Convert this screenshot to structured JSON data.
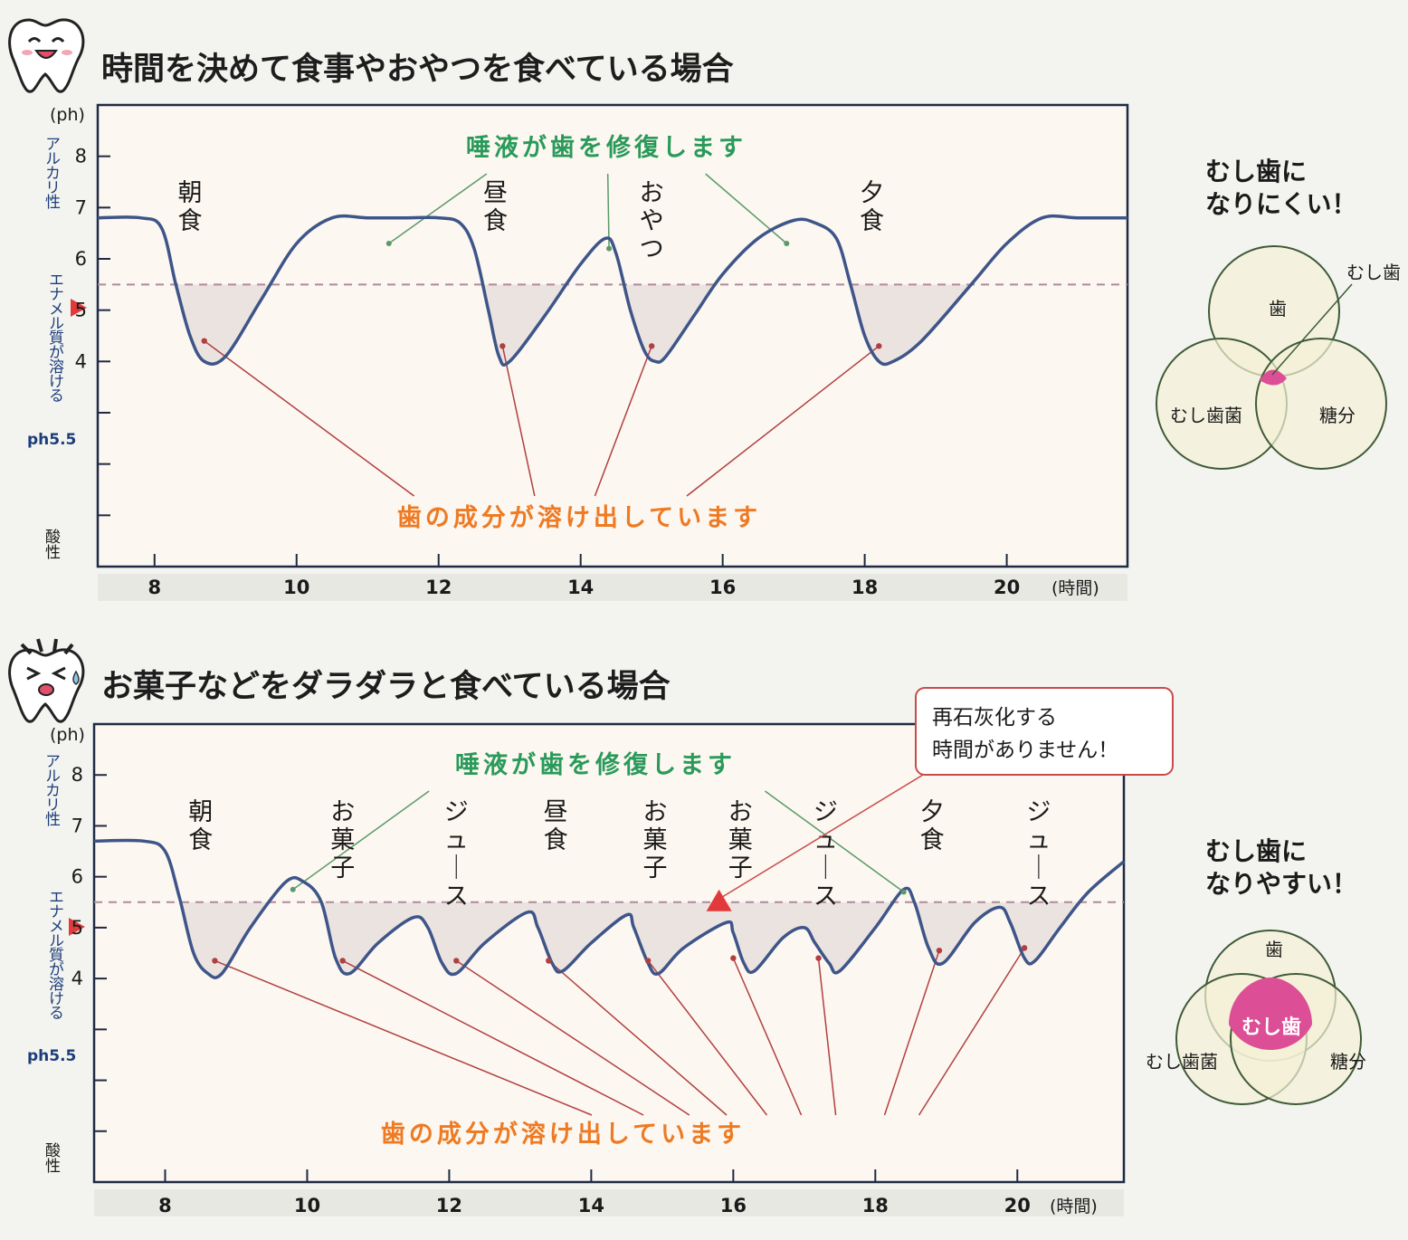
{
  "panels": [
    {
      "title": "時間を決めて食事やおやつを食べている場合",
      "unit": "(ph)",
      "side_alkaline": "アルカリ性",
      "side_threshold": "エナメル質が溶ける",
      "side_ph": "ph5.5",
      "side_acid": "酸性",
      "x_unit": "(時間)",
      "saliva_label": "唾液が歯を修復します",
      "dissolve_label": "歯の成分が溶け出しています",
      "venn_heading": [
        "むし歯に",
        "なりにくい！"
      ],
      "venn_labels": [
        "歯",
        "むし歯菌",
        "糖分",
        "むし歯"
      ],
      "chart_data": {
        "type": "line",
        "xlim": [
          7.2,
          21.7
        ],
        "ylim": [
          0,
          9
        ],
        "x_ticks": [
          8,
          10,
          12,
          14,
          16,
          18,
          20
        ],
        "y_ticks": [
          4,
          5,
          6,
          7,
          8
        ],
        "threshold": 5.5,
        "events": [
          {
            "x": 8.5,
            "label": "朝食"
          },
          {
            "x": 12.8,
            "label": "昼食"
          },
          {
            "x": 15.0,
            "label": "おやつ"
          },
          {
            "x": 18.1,
            "label": "夕食"
          }
        ],
        "series": [
          {
            "x": [
              7.2,
              7.8,
              8.1,
              8.3,
              8.5,
              8.7,
              9.0,
              9.5,
              10.0,
              10.5,
              11.0,
              11.5,
              12.0,
              12.3,
              12.5,
              12.7,
              12.85,
              13.0,
              13.5,
              14.0,
              14.35,
              14.5,
              14.7,
              14.9,
              15.05,
              15.2,
              15.6,
              16.0,
              16.5,
              17.0,
              17.3,
              17.6,
              17.8,
              18.0,
              18.2,
              18.4,
              18.8,
              19.5,
              20.0,
              20.5,
              21.0,
              21.7
            ],
            "y": [
              6.8,
              6.8,
              6.6,
              5.5,
              4.5,
              4.0,
              4.1,
              5.2,
              6.3,
              6.8,
              6.8,
              6.8,
              6.8,
              6.7,
              6.2,
              5.0,
              4.1,
              4.0,
              4.9,
              5.9,
              6.4,
              6.1,
              5.0,
              4.2,
              4.0,
              4.1,
              4.9,
              5.7,
              6.4,
              6.75,
              6.7,
              6.4,
              5.5,
              4.5,
              4.0,
              4.0,
              4.4,
              5.5,
              6.3,
              6.8,
              6.8,
              6.8
            ]
          }
        ],
        "saliva_points": [
          {
            "x": 11.3,
            "y": 6.3
          },
          {
            "x": 14.4,
            "y": 6.2
          },
          {
            "x": 16.9,
            "y": 6.3
          }
        ],
        "dissolve_points": [
          {
            "x": 8.7,
            "y": 4.4
          },
          {
            "x": 12.9,
            "y": 4.3
          },
          {
            "x": 15.0,
            "y": 4.3
          },
          {
            "x": 18.2,
            "y": 4.3
          }
        ]
      }
    },
    {
      "title": "お菓子などをダラダラと食べている場合",
      "unit": "(ph)",
      "side_alkaline": "アルカリ性",
      "side_threshold": "エナメル質が溶ける",
      "side_ph": "ph5.5",
      "side_acid": "酸性",
      "x_unit": "(時間)",
      "saliva_label": "唾液が歯を修復します",
      "dissolve_label": "歯の成分が溶け出しています",
      "callout": [
        "再石灰化する",
        "時間がありません！"
      ],
      "venn_heading": [
        "むし歯に",
        "なりやすい！"
      ],
      "venn_labels": [
        "歯",
        "むし歯菌",
        "糖分",
        "むし歯"
      ],
      "chart_data": {
        "type": "line",
        "xlim": [
          7.0,
          21.5
        ],
        "ylim": [
          0,
          9
        ],
        "x_ticks": [
          8,
          10,
          12,
          14,
          16,
          18,
          20
        ],
        "y_ticks": [
          4,
          5,
          6,
          7,
          8
        ],
        "threshold": 5.5,
        "events": [
          {
            "x": 8.5,
            "label": "朝食"
          },
          {
            "x": 10.5,
            "label": "お菓子"
          },
          {
            "x": 12.1,
            "label": "ジュース"
          },
          {
            "x": 13.5,
            "label": "昼食"
          },
          {
            "x": 14.9,
            "label": "お菓子"
          },
          {
            "x": 16.1,
            "label": "お菓子"
          },
          {
            "x": 17.3,
            "label": "ジュース"
          },
          {
            "x": 18.8,
            "label": "夕食"
          },
          {
            "x": 20.3,
            "label": "ジュース"
          }
        ],
        "series": [
          {
            "x": [
              7.0,
              7.7,
              8.0,
              8.2,
              8.4,
              8.6,
              8.8,
              9.2,
              9.7,
              9.95,
              10.2,
              10.4,
              10.6,
              11.0,
              11.5,
              11.7,
              11.9,
              12.1,
              12.5,
              13.1,
              13.25,
              13.45,
              13.6,
              14.0,
              14.5,
              14.6,
              14.8,
              14.95,
              15.3,
              15.9,
              16.0,
              16.15,
              16.3,
              16.7,
              17.0,
              17.15,
              17.35,
              17.5,
              18.0,
              18.4,
              18.55,
              18.75,
              18.95,
              19.4,
              19.75,
              19.9,
              20.1,
              20.25,
              20.6,
              21.0,
              21.5
            ],
            "y": [
              6.7,
              6.7,
              6.5,
              5.6,
              4.5,
              4.1,
              4.1,
              5.0,
              5.9,
              5.9,
              5.5,
              4.4,
              4.1,
              4.7,
              5.2,
              5.0,
              4.3,
              4.1,
              4.7,
              5.3,
              5.0,
              4.3,
              4.15,
              4.7,
              5.25,
              5.0,
              4.3,
              4.1,
              4.6,
              5.1,
              4.9,
              4.3,
              4.15,
              4.8,
              5.0,
              4.7,
              4.3,
              4.15,
              5.0,
              5.75,
              5.5,
              4.6,
              4.3,
              5.1,
              5.4,
              5.1,
              4.4,
              4.35,
              5.0,
              5.7,
              6.3
            ]
          }
        ],
        "saliva_points": [
          {
            "x": 9.8,
            "y": 5.75
          },
          {
            "x": 18.4,
            "y": 5.7
          }
        ],
        "dissolve_points": [
          {
            "x": 8.7,
            "y": 4.35
          },
          {
            "x": 10.5,
            "y": 4.35
          },
          {
            "x": 12.1,
            "y": 4.35
          },
          {
            "x": 13.4,
            "y": 4.35
          },
          {
            "x": 14.8,
            "y": 4.35
          },
          {
            "x": 16.0,
            "y": 4.4
          },
          {
            "x": 17.2,
            "y": 4.4
          },
          {
            "x": 18.9,
            "y": 4.55
          },
          {
            "x": 20.1,
            "y": 4.6
          }
        ],
        "callout_marker": {
          "x": 15.8,
          "y": 5.5
        }
      }
    }
  ],
  "colors": {
    "curve": "#3e5589",
    "threshold": "#b08a9c",
    "dissolve": "#ee7a23",
    "saliva": "#2a9a5a",
    "leader_red": "#b04040",
    "leader_green": "#5a9a6a",
    "marker": "#e23a3a",
    "venn_fill": "#f4f1d5",
    "venn_stroke": "#3f5a36",
    "venn_pink": "#dc4e95",
    "chart_bg": "#fcf7f0",
    "enamel_fill": "#ebe3e0"
  }
}
